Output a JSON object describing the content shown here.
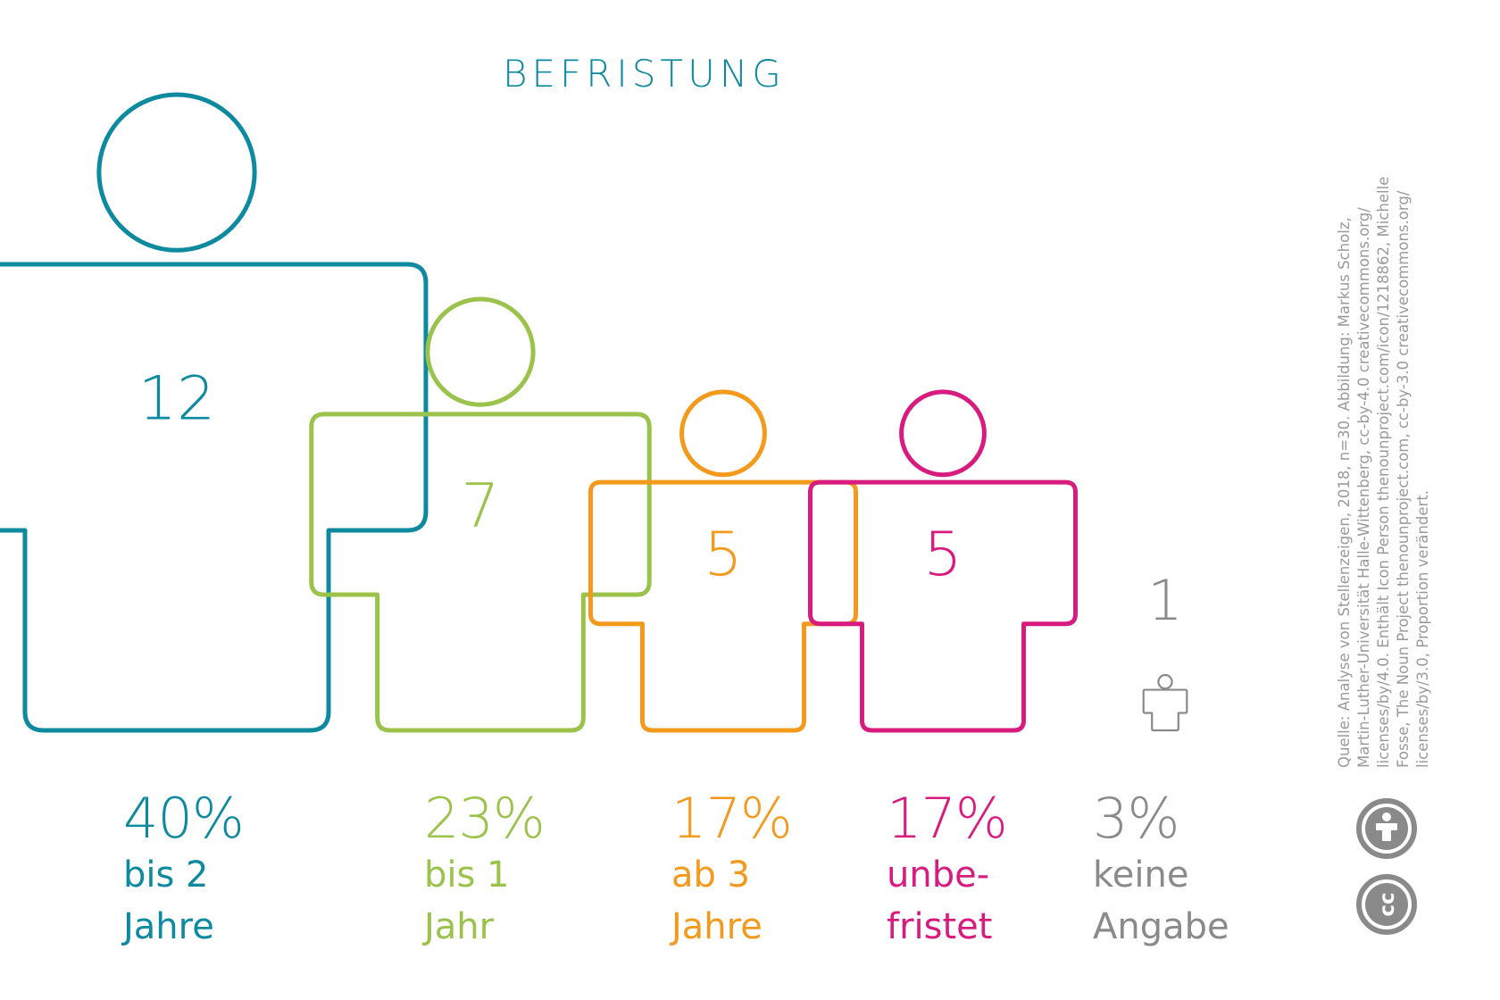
{
  "chart_data": {
    "type": "pictogram",
    "title": "BEFRISTUNG",
    "categories": [
      {
        "label": [
          "bis 2",
          "Jahre"
        ],
        "count": 12,
        "percent": "40%",
        "color": "#0e8aa0"
      },
      {
        "label": [
          "bis 1",
          "Jahr"
        ],
        "count": 7,
        "percent": "23%",
        "color": "#9bc24b"
      },
      {
        "label": [
          "ab 3",
          "Jahre"
        ],
        "count": 5,
        "percent": "17%",
        "color": "#f39a1c"
      },
      {
        "label": [
          "unbe-",
          "fristet"
        ],
        "count": 5,
        "percent": "17%",
        "color": "#d81b7e"
      },
      {
        "label": [
          "keine",
          "Angabe"
        ],
        "count": 1,
        "percent": "3%",
        "color": "#8a8a8a"
      }
    ],
    "total_n": 30
  },
  "source": {
    "lines": [
      "Quelle: Analyse von Stellenzeigen, 2018, n=30. Abbildung: Markus Scholz,",
      "Martin-Luther-Universität Halle-Wittenberg, cc-by-4.0 creativecommons.org/",
      "licenses/by/4.0. Enthält Icon Person thenounproject.com/icon/1218862, Michelle",
      "Fosse, The Noun Project thenounproject.com, cc-by-3.0 creativecommons.org/",
      "licenses/by/3.0, Proportion verändert."
    ]
  },
  "license": {
    "badge_top": "person-icon",
    "badge_bottom": "cc",
    "color": "#8a8a8a"
  }
}
